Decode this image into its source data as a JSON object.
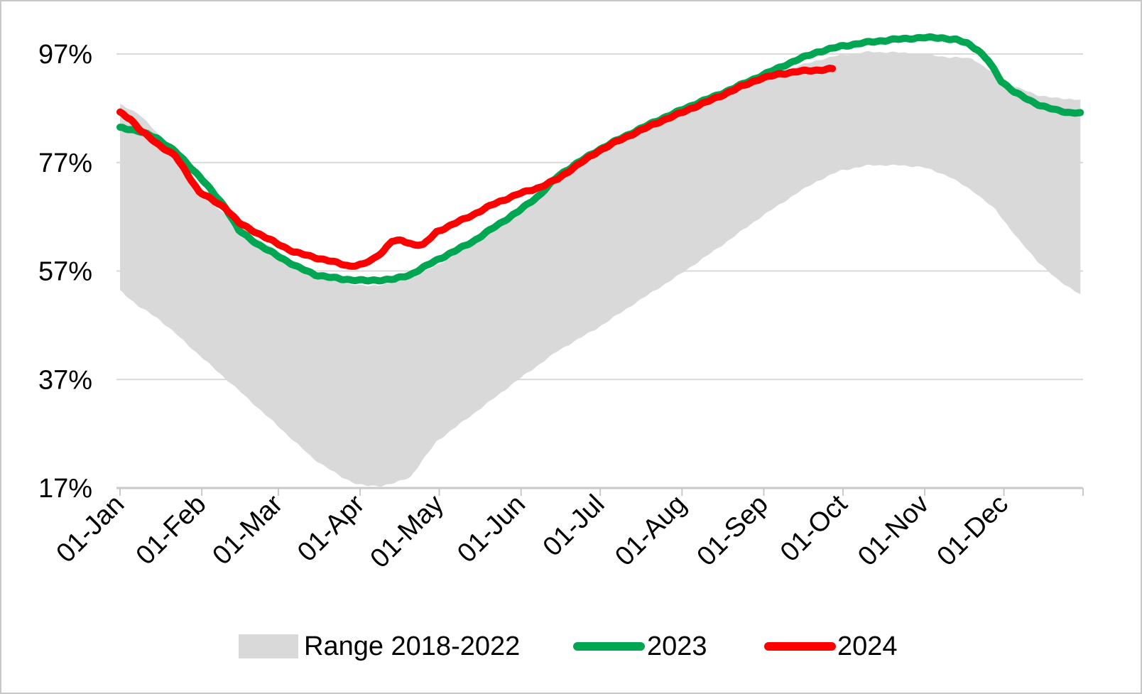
{
  "chart_data": {
    "type": "area",
    "title": "",
    "xlabel": "",
    "ylabel": "",
    "x_axis": {
      "labels": [
        "01-Jan",
        "01-Feb",
        "01-Mar",
        "01-Apr",
        "01-May",
        "01-Jun",
        "01-Jul",
        "01-Aug",
        "01-Sep",
        "01-Oct",
        "01-Nov",
        "01-Dec"
      ],
      "label_days": [
        1,
        32,
        61,
        92,
        122,
        153,
        183,
        214,
        245,
        275,
        306,
        336
      ],
      "tick_days": [
        1,
        32,
        61,
        92,
        122,
        153,
        183,
        214,
        245,
        275,
        306,
        336,
        366
      ],
      "range_days": [
        1,
        366
      ]
    },
    "y_axis": {
      "tick_labels": [
        "97%",
        "77%",
        "57%",
        "37%",
        "17%"
      ],
      "tick_values": [
        97,
        77,
        57,
        37,
        17
      ],
      "ylim": [
        17,
        103
      ],
      "unit": "%"
    },
    "grid": "horizontal-only",
    "legend_position": "bottom-center",
    "colors": {
      "band": "#d9d9d9",
      "green_2023": "#00a651",
      "red_2024": "#ff0000",
      "gridline": "#d9d9d9",
      "axis_line": "#c9c9c9",
      "text": "#000000",
      "page_border": "#c8c8c8"
    },
    "series": [
      {
        "name": "Range 2018-2022",
        "type": "band",
        "color": "#d9d9d9",
        "upper": [
          [
            1,
            87.8
          ],
          [
            8,
            86.0
          ],
          [
            15,
            82.5
          ],
          [
            22,
            78.5
          ],
          [
            31,
            71.1
          ],
          [
            41,
            67.4
          ],
          [
            46,
            65.0
          ],
          [
            60,
            60.9
          ],
          [
            74,
            56.7
          ],
          [
            85,
            54.8
          ],
          [
            95,
            54.2
          ],
          [
            105,
            54.8
          ],
          [
            111,
            55.6
          ],
          [
            121,
            58.0
          ],
          [
            135,
            62.0
          ],
          [
            152,
            67.5
          ],
          [
            167,
            74.2
          ],
          [
            182,
            79.6
          ],
          [
            190,
            81.2
          ],
          [
            196,
            83.3
          ],
          [
            205,
            85.0
          ],
          [
            213,
            86.3
          ],
          [
            227,
            89.2
          ],
          [
            244,
            92.3
          ],
          [
            258,
            94.8
          ],
          [
            265,
            95.8
          ],
          [
            274,
            96.8
          ],
          [
            285,
            97.4
          ],
          [
            295,
            97.3
          ],
          [
            305,
            97.0
          ],
          [
            315,
            96.4
          ],
          [
            324,
            96.2
          ],
          [
            335,
            92.4
          ],
          [
            340,
            91.0
          ],
          [
            349,
            89.4
          ],
          [
            355,
            88.9
          ],
          [
            365,
            88.6
          ]
        ],
        "lower": [
          [
            1,
            53.5
          ],
          [
            8,
            50.5
          ],
          [
            15,
            48.4
          ],
          [
            22,
            45.5
          ],
          [
            31,
            41.5
          ],
          [
            46,
            35.0
          ],
          [
            60,
            28.8
          ],
          [
            74,
            22.5
          ],
          [
            85,
            19.0
          ],
          [
            91,
            17.7
          ],
          [
            95,
            17.4
          ],
          [
            100,
            17.4
          ],
          [
            105,
            17.9
          ],
          [
            111,
            19.0
          ],
          [
            121,
            25.6
          ],
          [
            135,
            30.7
          ],
          [
            152,
            37.0
          ],
          [
            167,
            42.3
          ],
          [
            182,
            46.5
          ],
          [
            196,
            51.0
          ],
          [
            213,
            56.3
          ],
          [
            227,
            61.0
          ],
          [
            244,
            67.0
          ],
          [
            258,
            71.5
          ],
          [
            265,
            73.5
          ],
          [
            274,
            75.5
          ],
          [
            285,
            76.5
          ],
          [
            295,
            76.5
          ],
          [
            305,
            76.2
          ],
          [
            315,
            74.5
          ],
          [
            325,
            71.5
          ],
          [
            333,
            68.2
          ],
          [
            342,
            62.5
          ],
          [
            349,
            58.7
          ],
          [
            356,
            55.5
          ],
          [
            365,
            52.7
          ]
        ]
      },
      {
        "name": "2023",
        "type": "line",
        "color": "#00a651",
        "points": [
          [
            1,
            83.5
          ],
          [
            8,
            82.8
          ],
          [
            15,
            81.5
          ],
          [
            22,
            79.0
          ],
          [
            31,
            74.5
          ],
          [
            41,
            68.7
          ],
          [
            46,
            64.5
          ],
          [
            53,
            62.0
          ],
          [
            60,
            60.0
          ],
          [
            68,
            57.8
          ],
          [
            75,
            56.3
          ],
          [
            85,
            55.5
          ],
          [
            95,
            55.2
          ],
          [
            105,
            55.5
          ],
          [
            111,
            56.3
          ],
          [
            121,
            59.0
          ],
          [
            128,
            60.7
          ],
          [
            135,
            62.5
          ],
          [
            142,
            64.8
          ],
          [
            152,
            68.0
          ],
          [
            160,
            71.0
          ],
          [
            167,
            74.5
          ],
          [
            174,
            76.8
          ],
          [
            182,
            79.2
          ],
          [
            189,
            81.0
          ],
          [
            196,
            82.7
          ],
          [
            205,
            84.8
          ],
          [
            213,
            86.5
          ],
          [
            220,
            88.0
          ],
          [
            227,
            89.3
          ],
          [
            235,
            91.0
          ],
          [
            244,
            93.0
          ],
          [
            251,
            94.5
          ],
          [
            258,
            96.0
          ],
          [
            265,
            97.3
          ],
          [
            274,
            98.4
          ],
          [
            285,
            99.2
          ],
          [
            295,
            99.7
          ],
          [
            305,
            100.0
          ],
          [
            312,
            100.0
          ],
          [
            318,
            99.6
          ],
          [
            322,
            99.0
          ],
          [
            326,
            97.8
          ],
          [
            330,
            95.8
          ],
          [
            335,
            92.0
          ],
          [
            340,
            90.0
          ],
          [
            345,
            88.6
          ],
          [
            350,
            87.5
          ],
          [
            356,
            86.6
          ],
          [
            361,
            86.2
          ],
          [
            365,
            86.2
          ]
        ]
      },
      {
        "name": "2024",
        "type": "line",
        "color": "#ff0000",
        "points": [
          [
            1,
            86.3
          ],
          [
            5,
            85.0
          ],
          [
            9,
            82.8
          ],
          [
            15,
            80.5
          ],
          [
            22,
            78.2
          ],
          [
            31,
            71.6
          ],
          [
            38,
            69.5
          ],
          [
            41,
            68.6
          ],
          [
            46,
            65.9
          ],
          [
            53,
            64.0
          ],
          [
            60,
            62.2
          ],
          [
            67,
            60.5
          ],
          [
            74,
            59.6
          ],
          [
            81,
            58.8
          ],
          [
            88,
            57.9
          ],
          [
            93,
            58.2
          ],
          [
            97,
            59.2
          ],
          [
            101,
            60.8
          ],
          [
            104,
            62.5
          ],
          [
            108,
            62.6
          ],
          [
            112,
            61.9
          ],
          [
            116,
            61.8
          ],
          [
            121,
            64.2
          ],
          [
            128,
            65.8
          ],
          [
            135,
            67.4
          ],
          [
            142,
            69.2
          ],
          [
            152,
            71.2
          ],
          [
            160,
            72.4
          ],
          [
            167,
            74.0
          ],
          [
            174,
            76.4
          ],
          [
            182,
            79.0
          ],
          [
            189,
            80.8
          ],
          [
            196,
            82.4
          ],
          [
            205,
            84.4
          ],
          [
            213,
            86.0
          ],
          [
            220,
            87.5
          ],
          [
            227,
            88.9
          ],
          [
            235,
            90.7
          ],
          [
            244,
            92.5
          ],
          [
            251,
            93.3
          ],
          [
            258,
            93.8
          ],
          [
            265,
            94.0
          ],
          [
            271,
            94.3
          ]
        ]
      }
    ],
    "legend": [
      "Range 2018-2022",
      "2023",
      "2024"
    ]
  }
}
